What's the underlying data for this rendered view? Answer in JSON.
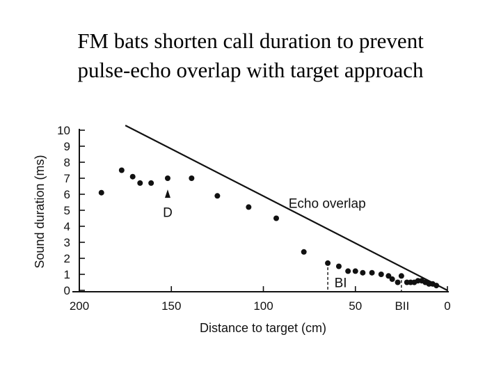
{
  "slide": {
    "title_line1": "FM bats shorten call duration to prevent",
    "title_line2": "pulse-echo overlap with target approach"
  },
  "chart_data": {
    "type": "scatter",
    "title": "FM bats shorten call duration to prevent pulse-echo overlap with target approach",
    "xlabel": "Distance to target (cm)",
    "ylabel": "Sound duration (ms)",
    "xlim": [
      200,
      0
    ],
    "ylim": [
      0,
      10
    ],
    "grid": false,
    "x_ticks": [
      200,
      150,
      100,
      50,
      0
    ],
    "x_tick_labels": [
      "200",
      "150",
      "100",
      "50",
      "0"
    ],
    "y_ticks": [
      0,
      1,
      2,
      3,
      4,
      5,
      6,
      7,
      8,
      9,
      10
    ],
    "y_tick_labels": [
      "0",
      "1",
      "2",
      "3",
      "4",
      "5",
      "6",
      "7",
      "8",
      "9",
      "10"
    ],
    "echo_overlap_line": {
      "x": [
        175,
        0
      ],
      "y": [
        10.3,
        0
      ]
    },
    "points": [
      {
        "x": 188,
        "y": 6.1
      },
      {
        "x": 177,
        "y": 7.5
      },
      {
        "x": 171,
        "y": 7.1
      },
      {
        "x": 167,
        "y": 6.7
      },
      {
        "x": 161,
        "y": 6.7
      },
      {
        "x": 152,
        "y": 7.0
      },
      {
        "x": 139,
        "y": 7.0
      },
      {
        "x": 125,
        "y": 5.9
      },
      {
        "x": 108,
        "y": 5.2
      },
      {
        "x": 93,
        "y": 4.5
      },
      {
        "x": 78,
        "y": 2.4
      },
      {
        "x": 65,
        "y": 1.7
      },
      {
        "x": 59,
        "y": 1.5
      },
      {
        "x": 54,
        "y": 1.2
      },
      {
        "x": 50,
        "y": 1.2
      },
      {
        "x": 46,
        "y": 1.1
      },
      {
        "x": 41,
        "y": 1.1
      },
      {
        "x": 36,
        "y": 1.0
      },
      {
        "x": 32,
        "y": 0.9
      },
      {
        "x": 30,
        "y": 0.7
      },
      {
        "x": 27,
        "y": 0.5
      },
      {
        "x": 25,
        "y": 0.9
      },
      {
        "x": 22,
        "y": 0.5
      },
      {
        "x": 20,
        "y": 0.5
      },
      {
        "x": 18,
        "y": 0.5
      },
      {
        "x": 16,
        "y": 0.6
      },
      {
        "x": 14,
        "y": 0.6
      },
      {
        "x": 12,
        "y": 0.5
      },
      {
        "x": 10,
        "y": 0.4
      },
      {
        "x": 8,
        "y": 0.4
      },
      {
        "x": 6,
        "y": 0.3
      }
    ],
    "annotations": {
      "echo_overlap": {
        "text": "Echo overlap",
        "x": 50,
        "y": 5.2
      },
      "d": {
        "text": "D",
        "x": 152,
        "y": 6.3,
        "label_y": 4.9
      },
      "bi": {
        "text": "BI",
        "x": 65,
        "label_x": 58,
        "label_y": 0.2
      },
      "bii": {
        "text": "BII",
        "x": 25
      }
    }
  }
}
